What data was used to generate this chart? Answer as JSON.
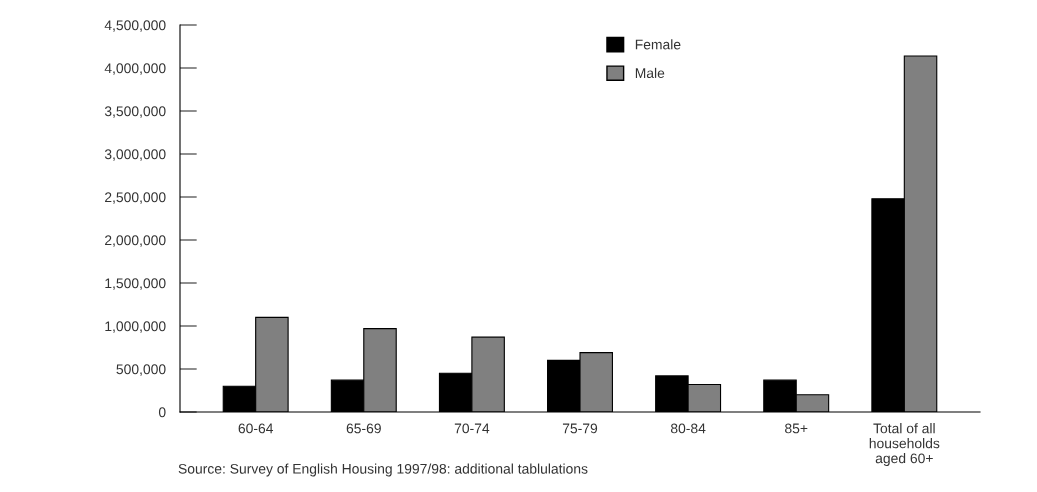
{
  "chart_data": {
    "type": "bar",
    "categories": [
      "60-64",
      "65-69",
      "70-74",
      "75-79",
      "80-84",
      "85+",
      "Total of all\nhouseholds\naged 60+"
    ],
    "series": [
      {
        "name": "Female",
        "color": "#000000",
        "values": [
          300000,
          370000,
          450000,
          600000,
          420000,
          370000,
          2480000
        ]
      },
      {
        "name": "Male",
        "color": "#808080",
        "values": [
          1100000,
          970000,
          870000,
          690000,
          320000,
          200000,
          4140000
        ]
      }
    ],
    "ylim": [
      0,
      4500000
    ],
    "yticks": [
      {
        "value": 0,
        "label": "0"
      },
      {
        "value": 500000,
        "label": "500,000"
      },
      {
        "value": 1000000,
        "label": "1,000,000"
      },
      {
        "value": 1500000,
        "label": "1,500,000"
      },
      {
        "value": 2000000,
        "label": "2,000,000"
      },
      {
        "value": 2500000,
        "label": "2,500,000"
      },
      {
        "value": 3000000,
        "label": "3,000,000"
      },
      {
        "value": 3500000,
        "label": "3,500,000"
      },
      {
        "value": 4000000,
        "label": "4,000,000"
      },
      {
        "value": 4500000,
        "label": "4,500,000"
      }
    ],
    "legend": "top",
    "grid": false,
    "annotations": [
      "Source: Survey of English Housing 1997/98: additional tablulations"
    ]
  }
}
